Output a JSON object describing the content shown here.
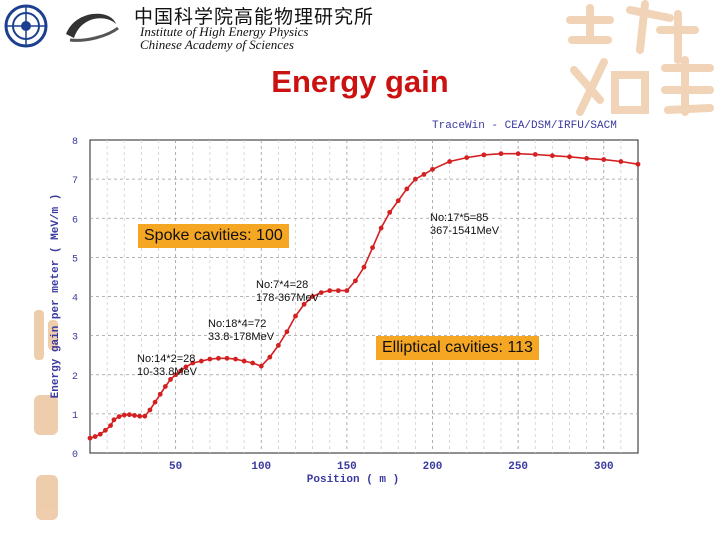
{
  "header": {
    "institute_cn": "中国科学院高能物理研究所",
    "institute_en_1": "Institute of High Energy Physics",
    "institute_en_2": "Chinese Academy of Sciences",
    "logo_icon": "ihep-seal-icon",
    "logo2_icon": "ihep-swirl-logo-icon",
    "decor_right": "calligraphy-decoration",
    "decor_left": "vertical-decoration",
    "decor_color": "#e8b88a"
  },
  "slide": {
    "title": "Energy gain",
    "title_color": "#cc1111"
  },
  "chart_header": "TraceWin - CEA/DSM/IRFU/SACM",
  "annotations": {
    "spoke_box": "Spoke cavities: 100",
    "elliptical_box": "Elliptical cavities: 113",
    "box_color": "#f5a623",
    "a1_line1": "No:14*2=28",
    "a1_line2": "10-33.8MeV",
    "a2_line1": "No:18*4=72",
    "a2_line2": "33.8-178MeV",
    "a3_line1": "No:7*4=28",
    "a3_line2": "178-367MeV",
    "a4_line1": "No:17*5=85",
    "a4_line2": "367-1541MeV"
  },
  "chart_data": {
    "type": "line",
    "xlabel": "Position ( m )",
    "ylabel": "Energy gain per meter ( MeV/m )",
    "xlim": [
      0,
      320
    ],
    "ylim": [
      0,
      8
    ],
    "xticks": [
      50,
      100,
      150,
      200,
      250,
      300
    ],
    "yticks": [
      0,
      1,
      2,
      3,
      4,
      5,
      6,
      7,
      8
    ],
    "grid": true,
    "line_color": "#d42020",
    "series": [
      {
        "x": [
          0,
          3,
          6,
          9,
          12,
          14,
          17,
          20,
          23,
          26,
          29,
          32,
          35,
          38,
          41,
          44,
          47,
          50,
          53,
          56,
          60,
          65,
          70,
          75,
          80,
          85,
          90,
          95,
          100,
          105,
          110,
          115,
          120,
          125,
          130,
          135,
          140,
          145,
          150,
          155,
          160,
          165,
          170,
          175,
          180,
          185,
          190,
          195,
          200,
          210,
          220,
          230,
          240,
          250,
          260,
          270,
          280,
          290,
          300,
          310,
          320
        ],
        "y": [
          0.38,
          0.42,
          0.48,
          0.58,
          0.7,
          0.85,
          0.93,
          0.97,
          0.98,
          0.96,
          0.94,
          0.94,
          1.1,
          1.3,
          1.5,
          1.7,
          1.88,
          2.0,
          2.1,
          2.2,
          2.3,
          2.35,
          2.4,
          2.42,
          2.42,
          2.4,
          2.35,
          2.3,
          2.22,
          2.45,
          2.75,
          3.1,
          3.5,
          3.8,
          4.0,
          4.1,
          4.15,
          4.15,
          4.15,
          4.4,
          4.75,
          5.25,
          5.75,
          6.15,
          6.45,
          6.75,
          7.0,
          7.12,
          7.25,
          7.45,
          7.55,
          7.62,
          7.65,
          7.65,
          7.63,
          7.6,
          7.57,
          7.53,
          7.5,
          7.45,
          7.38
        ]
      }
    ]
  }
}
